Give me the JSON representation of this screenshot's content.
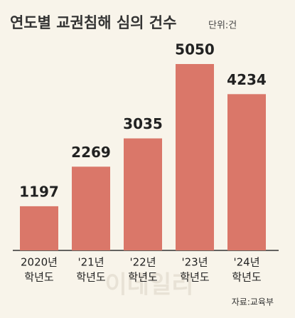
{
  "chart_data": {
    "type": "bar",
    "title": "연도별 교권침해 심의 건수",
    "unit": "단위:건",
    "categories": [
      [
        "2020년",
        "학년도"
      ],
      [
        "'21년",
        "학년도"
      ],
      [
        "'22년",
        "학년도"
      ],
      [
        "'23년",
        "학년도"
      ],
      [
        "'24년",
        "학년도"
      ]
    ],
    "values": [
      1197,
      2269,
      3035,
      5050,
      4234
    ],
    "color": "#da7769",
    "source": "자료:교육부",
    "watermark": "이데일리"
  }
}
